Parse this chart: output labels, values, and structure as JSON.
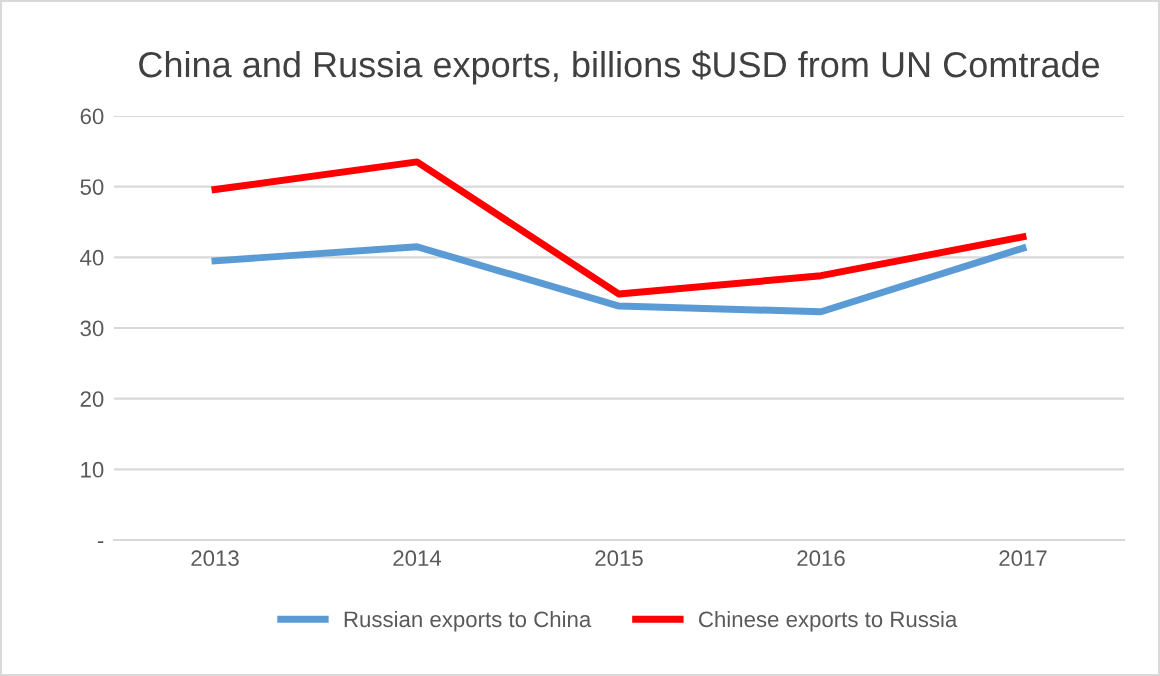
{
  "chart_data": {
    "type": "line",
    "title": "China and Russia exports, billions $USD from UN Comtrade",
    "categories": [
      "2013",
      "2014",
      "2015",
      "2016",
      "2017"
    ],
    "series": [
      {
        "name": "Russian exports to China",
        "color": "#5b9bd5",
        "values": [
          39.5,
          41.5,
          33.1,
          32.3,
          41.3
        ]
      },
      {
        "name": "Chinese exports to Russia",
        "color": "#ff0000",
        "values": [
          49.6,
          53.5,
          34.8,
          37.4,
          42.9
        ]
      }
    ],
    "ylim": [
      0,
      60
    ],
    "yticks": [
      {
        "value": 0,
        "label": "-"
      },
      10,
      20,
      30,
      40,
      50,
      60
    ],
    "grid": "y",
    "legend": "bottom",
    "marker": "none",
    "line_style": "solid"
  }
}
